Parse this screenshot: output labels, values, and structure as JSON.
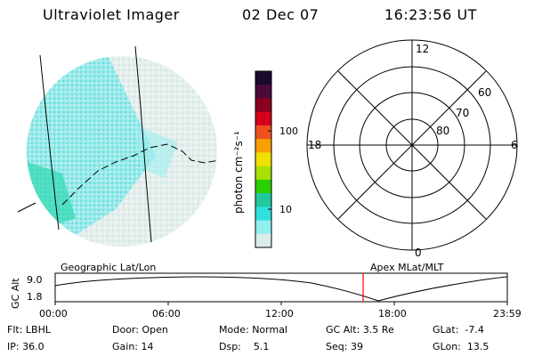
{
  "header": {
    "instrument": "Ultraviolet Imager",
    "date": "02 Dec 07",
    "time": "16:23:56 UT"
  },
  "colorbar": {
    "label": "photon cm⁻²s⁻¹",
    "ticks": [
      "100",
      "10"
    ],
    "colors": [
      "#1a0a2e",
      "#4a0a3a",
      "#8a0020",
      "#d4001c",
      "#f05020",
      "#f8a000",
      "#f0e000",
      "#a8e000",
      "#28d000",
      "#20c8a0",
      "#30e0e0",
      "#90f0f0",
      "#dcecea"
    ]
  },
  "polar": {
    "labels": {
      "top": "12",
      "left": "18",
      "right": "6",
      "bottom": "0"
    },
    "rings": [
      "60",
      "70",
      "80"
    ]
  },
  "timeline": {
    "left_label": "Geographic Lat/Lon",
    "right_label": "Apex MLat/MLT",
    "axis_title": "GC Alt",
    "y_ticks": [
      "9.0",
      "1.8"
    ],
    "x_ticks": [
      "00:00",
      "06:00",
      "12:00",
      "18:00",
      "23:59"
    ],
    "marker_color": "#ff0000"
  },
  "status": {
    "row1": [
      {
        "key": "Flt:",
        "value": "LBHL"
      },
      {
        "key": "Door:",
        "value": "Open"
      },
      {
        "key": "Mode:",
        "value": "Normal"
      },
      {
        "key": "GC Alt:",
        "value": "3.5 Re"
      },
      {
        "key": "GLat:",
        "value": "-7.4"
      }
    ],
    "row2": [
      {
        "key": "IP:",
        "value": "36.0"
      },
      {
        "key": "Gain:",
        "value": "14"
      },
      {
        "key": "Dsp:",
        "value": "5.1"
      },
      {
        "key": "Seq:",
        "value": "39"
      },
      {
        "key": "GLon:",
        "value": "13.5"
      }
    ]
  }
}
